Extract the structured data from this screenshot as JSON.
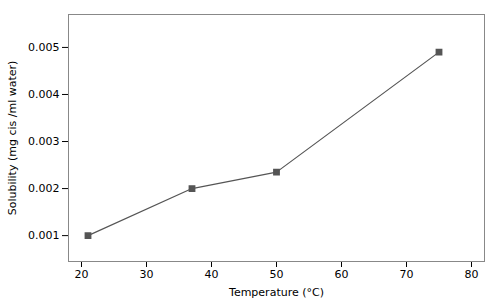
{
  "chart_data": {
    "type": "line",
    "x": [
      21,
      37,
      50,
      75
    ],
    "values": [
      0.001,
      0.002,
      0.00235,
      0.0049
    ],
    "xlabel": "Temperature (°C)",
    "ylabel": "Solubility (mg cis /ml water)",
    "xlim": [
      18,
      82
    ],
    "ylim": [
      0.00045,
      0.0057
    ],
    "xticks": [
      20,
      30,
      40,
      50,
      60,
      70,
      80
    ],
    "yticks": [
      0.001,
      0.002,
      0.003,
      0.004,
      0.005
    ],
    "color": "#555555",
    "marker": "square",
    "grid": false
  }
}
